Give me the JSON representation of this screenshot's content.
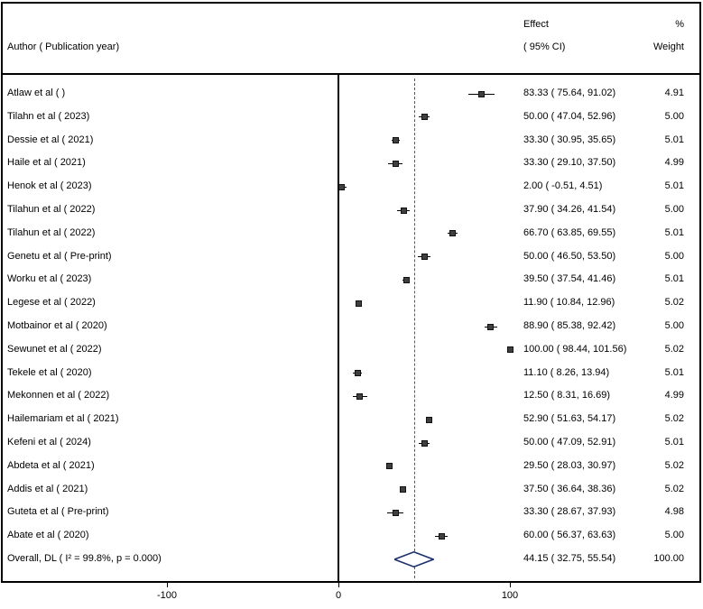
{
  "header": {
    "author_col": "Author ( Publication year)",
    "effect_col_line1": "Effect",
    "effect_col_line2": "( 95% CI)",
    "weight_col_line1": "%",
    "weight_col_line2": "Weight"
  },
  "chart_data": {
    "type": "forest",
    "title": "",
    "xlabel": "",
    "x_axis": {
      "ticks": [
        -100,
        0,
        100
      ],
      "zero_line": 0,
      "overall_line": 44.15,
      "xlim": [
        -197,
        212
      ]
    },
    "colors": {
      "axis": "#000000",
      "ci_line": "#000000",
      "marker": "#3f3f3f",
      "marker_border": "#111111",
      "dashed_line": "#9a3b3b",
      "diamond": "#1a2f6e"
    },
    "studies": [
      {
        "author": "Atlaw et al ( )",
        "effect": 83.33,
        "ci_low": 75.64,
        "ci_high": 91.02,
        "effect_label": "83.33 ( 75.64, 91.02)",
        "weight": "4.91"
      },
      {
        "author": "Tilahn et al ( 2023)",
        "effect": 50.0,
        "ci_low": 47.04,
        "ci_high": 52.96,
        "effect_label": "50.00 ( 47.04, 52.96)",
        "weight": "5.00"
      },
      {
        "author": "Dessie et al ( 2021)",
        "effect": 33.3,
        "ci_low": 30.95,
        "ci_high": 35.65,
        "effect_label": "33.30 ( 30.95, 35.65)",
        "weight": "5.01"
      },
      {
        "author": "Haile et al ( 2021)",
        "effect": 33.3,
        "ci_low": 29.1,
        "ci_high": 37.5,
        "effect_label": "33.30 ( 29.10, 37.50)",
        "weight": "4.99"
      },
      {
        "author": "Henok et al ( 2023)",
        "effect": 2.0,
        "ci_low": -0.51,
        "ci_high": 4.51,
        "effect_label": "2.00 ( -0.51, 4.51)",
        "weight": "5.01"
      },
      {
        "author": "Tilahun et al ( 2022)",
        "effect": 37.9,
        "ci_low": 34.26,
        "ci_high": 41.54,
        "effect_label": "37.90 ( 34.26, 41.54)",
        "weight": "5.00"
      },
      {
        "author": "Tilahun et al ( 2022)",
        "effect": 66.7,
        "ci_low": 63.85,
        "ci_high": 69.55,
        "effect_label": "66.70 ( 63.85, 69.55)",
        "weight": "5.01"
      },
      {
        "author": "Genetu et al ( Pre-print)",
        "effect": 50.0,
        "ci_low": 46.5,
        "ci_high": 53.5,
        "effect_label": "50.00 ( 46.50, 53.50)",
        "weight": "5.00"
      },
      {
        "author": "Worku et al ( 2023)",
        "effect": 39.5,
        "ci_low": 37.54,
        "ci_high": 41.46,
        "effect_label": "39.50 ( 37.54, 41.46)",
        "weight": "5.01"
      },
      {
        "author": "Legese et al ( 2022)",
        "effect": 11.9,
        "ci_low": 10.84,
        "ci_high": 12.96,
        "effect_label": "11.90 ( 10.84, 12.96)",
        "weight": "5.02"
      },
      {
        "author": "Motbainor et al ( 2020)",
        "effect": 88.9,
        "ci_low": 85.38,
        "ci_high": 92.42,
        "effect_label": "88.90 ( 85.38, 92.42)",
        "weight": "5.00"
      },
      {
        "author": "Sewunet et al ( 2022)",
        "effect": 100.0,
        "ci_low": 98.44,
        "ci_high": 101.56,
        "effect_label": "100.00 ( 98.44, 101.56)",
        "weight": "5.02"
      },
      {
        "author": "Tekele et al ( 2020)",
        "effect": 11.1,
        "ci_low": 8.26,
        "ci_high": 13.94,
        "effect_label": "11.10 ( 8.26, 13.94)",
        "weight": "5.01"
      },
      {
        "author": "Mekonnen et al ( 2022)",
        "effect": 12.5,
        "ci_low": 8.31,
        "ci_high": 16.69,
        "effect_label": "12.50 ( 8.31, 16.69)",
        "weight": "4.99"
      },
      {
        "author": "Hailemariam et al ( 2021)",
        "effect": 52.9,
        "ci_low": 51.63,
        "ci_high": 54.17,
        "effect_label": "52.90 ( 51.63, 54.17)",
        "weight": "5.02"
      },
      {
        "author": "Kefeni et al ( 2024)",
        "effect": 50.0,
        "ci_low": 47.09,
        "ci_high": 52.91,
        "effect_label": "50.00 ( 47.09, 52.91)",
        "weight": "5.01"
      },
      {
        "author": "Abdeta et al ( 2021)",
        "effect": 29.5,
        "ci_low": 28.03,
        "ci_high": 30.97,
        "effect_label": "29.50 ( 28.03, 30.97)",
        "weight": "5.02"
      },
      {
        "author": "Addis et al ( 2021)",
        "effect": 37.5,
        "ci_low": 36.64,
        "ci_high": 38.36,
        "effect_label": "37.50 ( 36.64, 38.36)",
        "weight": "5.02"
      },
      {
        "author": "Guteta et al ( Pre-print)",
        "effect": 33.3,
        "ci_low": 28.67,
        "ci_high": 37.93,
        "effect_label": "33.30 ( 28.67, 37.93)",
        "weight": "4.98"
      },
      {
        "author": "Abate et al ( 2020)",
        "effect": 60.0,
        "ci_low": 56.37,
        "ci_high": 63.63,
        "effect_label": "60.00 ( 56.37, 63.63)",
        "weight": "5.00"
      }
    ],
    "overall": {
      "label": "Overall, DL ( I² = 99.8%, p = 0.000)",
      "effect": 44.15,
      "ci_low": 32.75,
      "ci_high": 55.54,
      "effect_label": "44.15 ( 32.75, 55.54)",
      "weight": "100.00"
    }
  }
}
